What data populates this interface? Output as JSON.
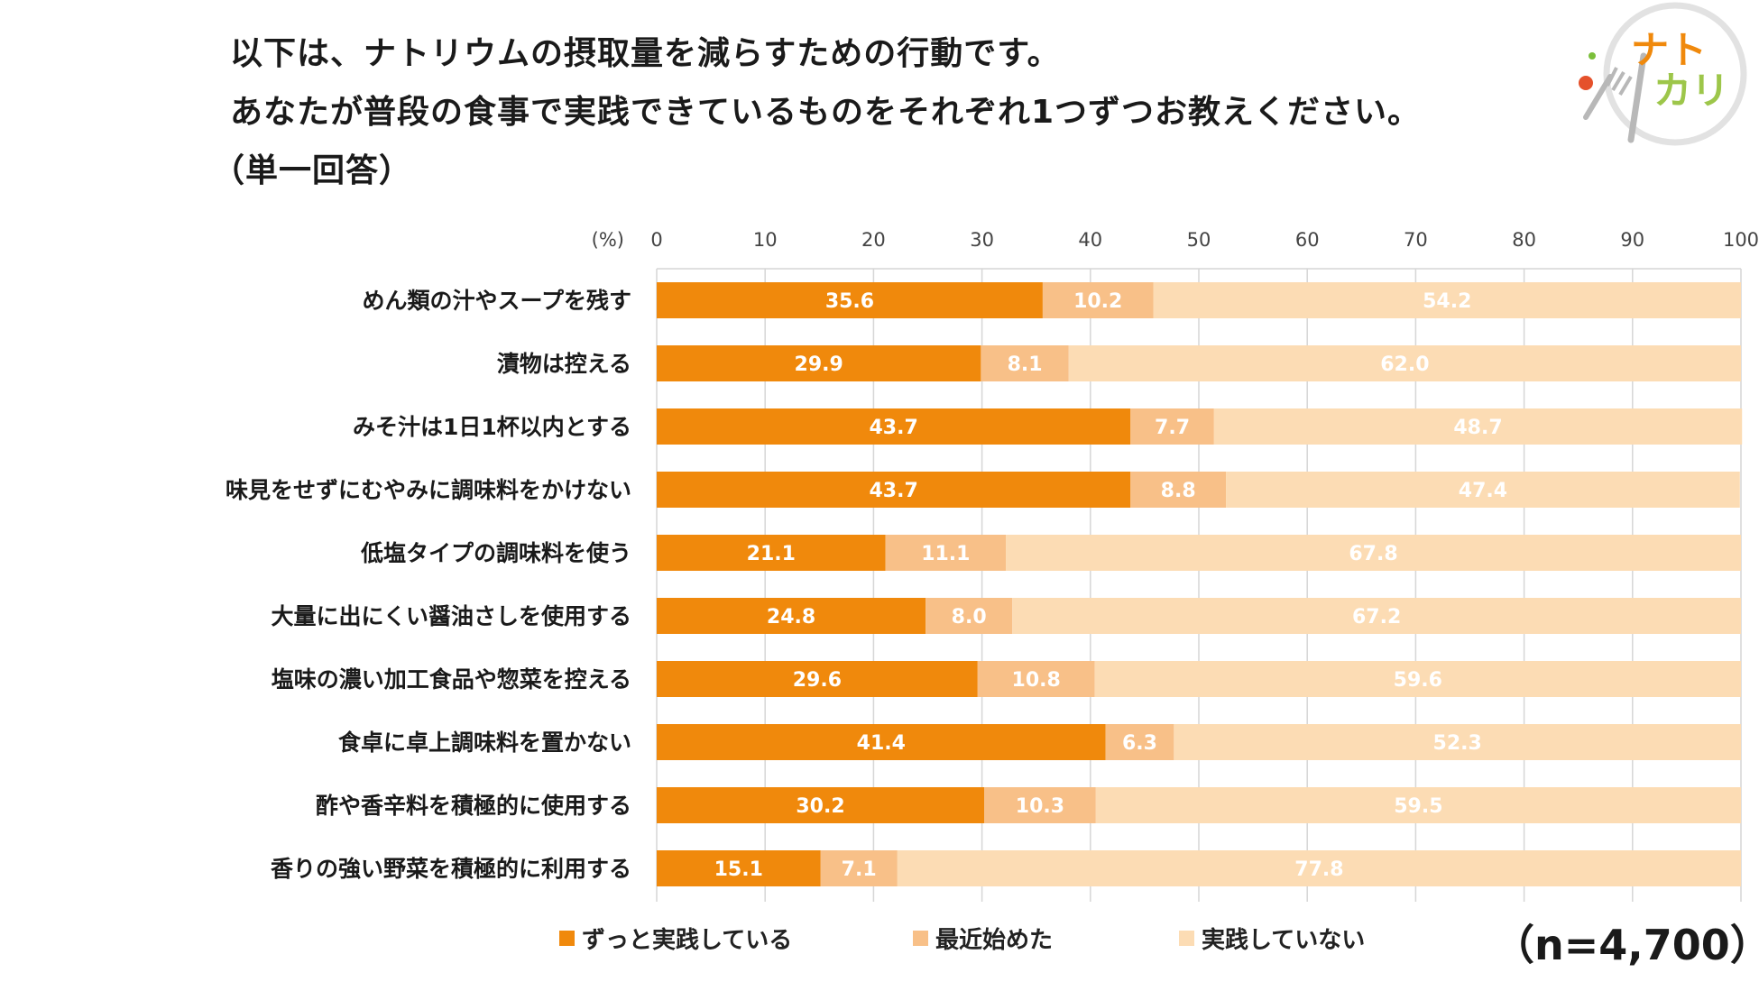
{
  "title": {
    "line1": "以下は、ナトリウムの摂取量を減らすための行動です。",
    "line2": "あなたが普段の食事で実践できているものをそれぞれ1つずつお教えください。",
    "line3": "（単一回答）"
  },
  "logo": {
    "text_top": "ナト",
    "text_bottom": "カリ"
  },
  "sample_size": "（n=4,700）",
  "colors": {
    "series1": "#f0890c",
    "series2": "#f8c088",
    "series3": "#fcdcb4",
    "grid": "#d6d6d6"
  },
  "chart_data": {
    "type": "bar",
    "orientation": "horizontal",
    "stacked": true,
    "axis_unit_label": "(%)",
    "xlim": [
      0,
      100
    ],
    "x_ticks": [
      0,
      10,
      20,
      30,
      40,
      50,
      60,
      70,
      80,
      90,
      100
    ],
    "categories": [
      "めん類の汁やスープを残す",
      "漬物は控える",
      "みそ汁は1日1杯以内とする",
      "味見をせずにむやみに調味料をかけない",
      "低塩タイプの調味料を使う",
      "大量に出にくい醤油さしを使用する",
      "塩味の濃い加工食品や惣菜を控える",
      "食卓に卓上調味料を置かない",
      "酢や香辛料を積極的に使用する",
      "香りの強い野菜を積極的に利用する"
    ],
    "series": [
      {
        "name": "ずっと実践している",
        "values": [
          35.6,
          29.9,
          43.7,
          43.7,
          21.1,
          24.8,
          29.6,
          41.4,
          30.2,
          15.1
        ],
        "labels": [
          "35.6",
          "29.9",
          "43.7",
          "43.7",
          "21.1",
          "24.8",
          "29.6",
          "41.4",
          "30.2",
          "15.1"
        ]
      },
      {
        "name": "最近始めた",
        "values": [
          10.2,
          8.1,
          7.7,
          8.8,
          11.1,
          8.0,
          10.8,
          6.3,
          10.3,
          7.1
        ],
        "labels": [
          "10.2",
          "8.1",
          "7.7",
          "8.8",
          "11.1",
          "8.0",
          "10.8",
          "6.3",
          "10.3",
          "7.1"
        ]
      },
      {
        "name": "実践していない",
        "values": [
          54.2,
          62.0,
          48.7,
          47.4,
          67.8,
          67.2,
          59.6,
          52.3,
          59.5,
          77.8
        ],
        "labels": [
          "54.2",
          "62.0",
          "48.7",
          "47.4",
          "67.8",
          "67.2",
          "59.6",
          "52.3",
          "59.5",
          "77.8"
        ]
      }
    ],
    "legend": "bottom"
  }
}
